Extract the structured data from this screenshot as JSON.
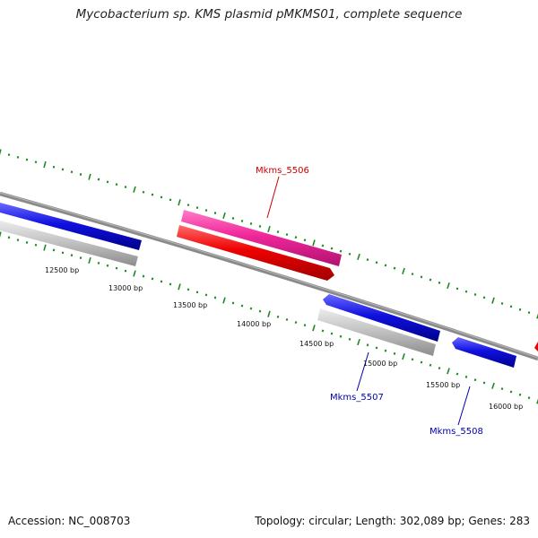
{
  "title": "Mycobacterium sp. KMS plasmid pMKMS01, complete sequence",
  "footer": {
    "accession": "Accession: NC_008703",
    "topology": "Topology: circular; Length: 302,089 bp; Genes: 283"
  },
  "scale_labels": [
    "12500 bp",
    "13000 bp",
    "13500 bp",
    "14000 bp",
    "14500 bp",
    "15000 bp",
    "15500 bp",
    "16000 bp"
  ],
  "gene_labels": [
    "Mkms_5506",
    "Mkms_5507",
    "Mkms_5508"
  ],
  "colors": {
    "backbone": "#7a7a7a",
    "tick": "#1f8a1f",
    "gene_forward_pink": "#f0289a",
    "gene_forward_red": "#ee0000",
    "gene_reverse_blue": "#1010e0",
    "gene_grey": "#c4c4c4",
    "label_red": "#cc0000",
    "label_blue": "#0000aa"
  }
}
